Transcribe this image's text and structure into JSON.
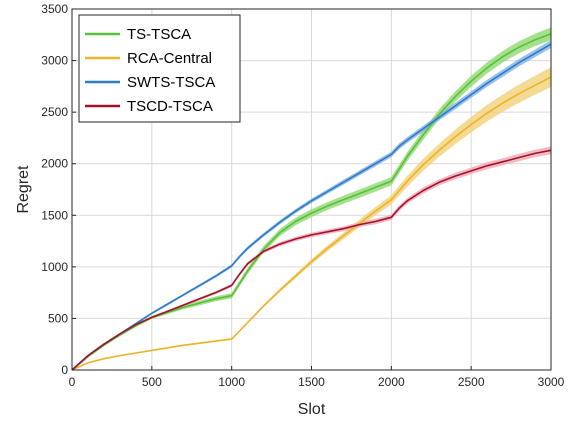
{
  "chart_data": {
    "type": "line",
    "xlabel": "Slot",
    "ylabel": "Regret",
    "xlim": [
      0,
      3000
    ],
    "ylim": [
      0,
      3500
    ],
    "xticks": [
      0,
      500,
      1000,
      1500,
      2000,
      2500,
      3000
    ],
    "yticks": [
      0,
      500,
      1000,
      1500,
      2000,
      2500,
      3000,
      3500
    ],
    "grid": true,
    "legend_position": "top-left",
    "series": [
      {
        "name": "TS-TSCA",
        "color": "#5abf3a",
        "band_color": "#8fd870",
        "x": [
          0,
          100,
          200,
          300,
          400,
          500,
          600,
          700,
          800,
          900,
          1000,
          1050,
          1100,
          1200,
          1300,
          1400,
          1500,
          1600,
          1700,
          1800,
          1900,
          2000,
          2050,
          2100,
          2200,
          2300,
          2400,
          2500,
          2600,
          2700,
          2800,
          2900,
          3000
        ],
        "y": [
          0,
          130,
          240,
          340,
          430,
          510,
          560,
          610,
          650,
          690,
          720,
          840,
          960,
          1170,
          1330,
          1440,
          1520,
          1590,
          1650,
          1710,
          1770,
          1830,
          1950,
          2070,
          2280,
          2480,
          2650,
          2800,
          2930,
          3040,
          3130,
          3200,
          3260
        ],
        "band": [
          0,
          6,
          10,
          12,
          14,
          16,
          18,
          20,
          22,
          24,
          26,
          28,
          30,
          32,
          34,
          36,
          38,
          38,
          40,
          40,
          40,
          40,
          42,
          44,
          46,
          48,
          50,
          52,
          54,
          56,
          58,
          60,
          62
        ]
      },
      {
        "name": "RCA-Central",
        "color": "#e8b42a",
        "band_color": "#f2d178",
        "x": [
          0,
          100,
          200,
          300,
          400,
          500,
          600,
          700,
          800,
          900,
          1000,
          1100,
          1200,
          1300,
          1400,
          1500,
          1600,
          1700,
          1800,
          1900,
          2000,
          2050,
          2100,
          2200,
          2300,
          2400,
          2500,
          2600,
          2700,
          2800,
          2900,
          3000
        ],
        "y": [
          0,
          70,
          110,
          140,
          165,
          190,
          215,
          240,
          260,
          280,
          300,
          460,
          620,
          770,
          910,
          1050,
          1180,
          1300,
          1420,
          1540,
          1650,
          1740,
          1830,
          1990,
          2130,
          2260,
          2380,
          2490,
          2590,
          2680,
          2760,
          2840
        ],
        "band": [
          0,
          2,
          3,
          4,
          5,
          6,
          6,
          7,
          7,
          8,
          8,
          10,
          12,
          16,
          20,
          24,
          28,
          32,
          36,
          40,
          44,
          48,
          52,
          58,
          64,
          70,
          76,
          80,
          84,
          88,
          92,
          96
        ]
      },
      {
        "name": "SWTS-TSCA",
        "color": "#2e7bc8",
        "band_color": "#7fb2e6",
        "x": [
          0,
          100,
          200,
          300,
          400,
          500,
          600,
          700,
          800,
          900,
          1000,
          1050,
          1100,
          1200,
          1300,
          1400,
          1500,
          1600,
          1700,
          1800,
          1900,
          2000,
          2050,
          2100,
          2200,
          2300,
          2400,
          2500,
          2600,
          2700,
          2800,
          2900,
          3000
        ],
        "y": [
          0,
          140,
          250,
          350,
          450,
          550,
          640,
          730,
          820,
          910,
          1010,
          1100,
          1180,
          1310,
          1430,
          1540,
          1640,
          1730,
          1820,
          1910,
          2000,
          2090,
          2170,
          2230,
          2340,
          2450,
          2560,
          2670,
          2780,
          2880,
          2980,
          3070,
          3160
        ],
        "band": [
          0,
          4,
          6,
          8,
          10,
          10,
          12,
          12,
          14,
          14,
          16,
          16,
          18,
          18,
          20,
          20,
          22,
          22,
          24,
          24,
          26,
          26,
          28,
          28,
          30,
          30,
          32,
          32,
          34,
          34,
          36,
          36,
          38
        ]
      },
      {
        "name": "TSCD-TSCA",
        "color": "#a3122c",
        "band_color": "#f0a8b4",
        "x": [
          0,
          100,
          200,
          300,
          400,
          500,
          600,
          700,
          800,
          900,
          1000,
          1050,
          1100,
          1200,
          1300,
          1400,
          1500,
          1600,
          1700,
          1800,
          1900,
          2000,
          2050,
          2100,
          2200,
          2300,
          2400,
          2500,
          2600,
          2700,
          2800,
          2900,
          3000
        ],
        "y": [
          0,
          140,
          250,
          350,
          440,
          510,
          570,
          630,
          690,
          750,
          820,
          930,
          1030,
          1150,
          1220,
          1270,
          1310,
          1340,
          1370,
          1410,
          1440,
          1480,
          1570,
          1640,
          1740,
          1820,
          1880,
          1930,
          1980,
          2020,
          2060,
          2100,
          2130
        ],
        "band": [
          0,
          4,
          6,
          8,
          10,
          10,
          12,
          12,
          14,
          14,
          16,
          16,
          18,
          18,
          20,
          20,
          22,
          22,
          24,
          24,
          26,
          26,
          28,
          28,
          30,
          30,
          32,
          32,
          34,
          34,
          36,
          36,
          38
        ]
      }
    ]
  }
}
